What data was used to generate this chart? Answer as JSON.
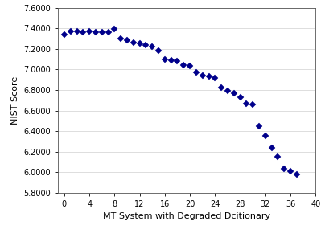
{
  "x": [
    0,
    1,
    2,
    3,
    4,
    5,
    6,
    7,
    8,
    9,
    10,
    11,
    12,
    13,
    14,
    15,
    16,
    17,
    18,
    19,
    20,
    21,
    22,
    23,
    24,
    25,
    26,
    27,
    28,
    29,
    30,
    31,
    32,
    33,
    34,
    35,
    36,
    37
  ],
  "y": [
    7.34,
    7.37,
    7.37,
    7.36,
    7.37,
    7.36,
    7.36,
    7.36,
    7.39,
    7.3,
    7.28,
    7.26,
    7.25,
    7.24,
    7.22,
    7.18,
    7.1,
    7.09,
    7.08,
    7.04,
    7.03,
    6.97,
    6.94,
    6.93,
    6.92,
    6.82,
    6.79,
    6.77,
    6.73,
    6.67,
    6.66,
    6.45,
    6.35,
    6.24,
    6.15,
    6.03,
    6.01,
    5.98
  ],
  "marker_color": "#00008B",
  "marker_size": 4,
  "xlabel": "MT System with Degraded Dcitionary",
  "ylabel": "NIST Score",
  "xlim": [
    -1,
    40
  ],
  "ylim": [
    5.8,
    7.6
  ],
  "yticks": [
    5.8,
    6.0,
    6.2,
    6.4,
    6.6,
    6.8,
    7.0,
    7.2,
    7.4,
    7.6
  ],
  "xticks": [
    0,
    4,
    8,
    12,
    16,
    20,
    24,
    28,
    32,
    36,
    40
  ],
  "grid_color": "#d0d0d0",
  "background_color": "#ffffff",
  "xlabel_fontsize": 8,
  "ylabel_fontsize": 8,
  "tick_fontsize": 7
}
